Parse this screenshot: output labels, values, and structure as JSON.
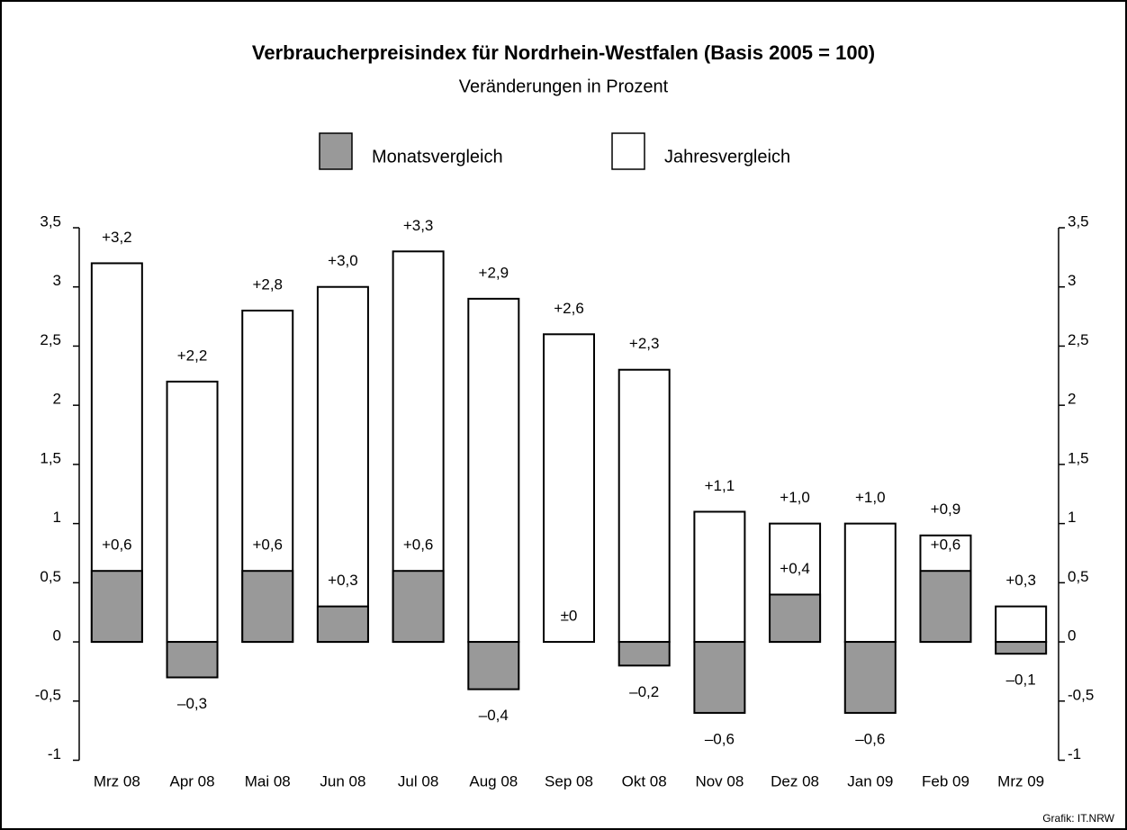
{
  "chart_data": {
    "type": "bar",
    "title": "Verbraucherpreisindex für Nordrhein-Westfalen (Basis 2005 = 100)",
    "subtitle": "Veränderungen in Prozent",
    "source": "Grafik: IT.NRW",
    "categories": [
      "Mrz 08",
      "Apr 08",
      "Mai 08",
      "Jun 08",
      "Jul 08",
      "Aug 08",
      "Sep 08",
      "Okt 08",
      "Nov 08",
      "Dez 08",
      "Jan 09",
      "Feb 09",
      "Mrz 09"
    ],
    "series": [
      {
        "name": "Monatsvergleich",
        "color": "#999999",
        "values": [
          0.6,
          -0.3,
          0.6,
          0.3,
          0.6,
          -0.4,
          0,
          -0.2,
          -0.6,
          0.4,
          -0.6,
          0.6,
          -0.1
        ],
        "value_labels": [
          "+0,6",
          "–0,3",
          "+0,6",
          "+0,3",
          "+0,6",
          "–0,4",
          "±0",
          "–0,2",
          "–0,6",
          "+0,4",
          "–0,6",
          "+0,6",
          "–0,1"
        ]
      },
      {
        "name": "Jahresvergleich",
        "color": "#ffffff",
        "values": [
          3.2,
          2.2,
          2.8,
          3.0,
          3.3,
          2.9,
          2.6,
          2.3,
          1.1,
          1.0,
          1.0,
          0.9,
          0.3
        ],
        "value_labels": [
          "+3,2",
          "+2,2",
          "+2,8",
          "+3,0",
          "+3,3",
          "+2,9",
          "+2,6",
          "+2,3",
          "+1,1",
          "+1,0",
          "+1,0",
          "+0,9",
          "+0,3"
        ]
      }
    ],
    "ylim": [
      -1,
      3.5
    ],
    "yticks": [
      -1,
      {
        "value": -0.5,
        "label": "-0,5"
      },
      0,
      {
        "value": 0.5,
        "label": "0,5"
      },
      1,
      {
        "value": 1.5,
        "label": "1,5"
      },
      2,
      {
        "value": 2.5,
        "label": "2,5"
      },
      3,
      {
        "value": 3.5,
        "label": "3,5"
      }
    ],
    "grid": false
  }
}
